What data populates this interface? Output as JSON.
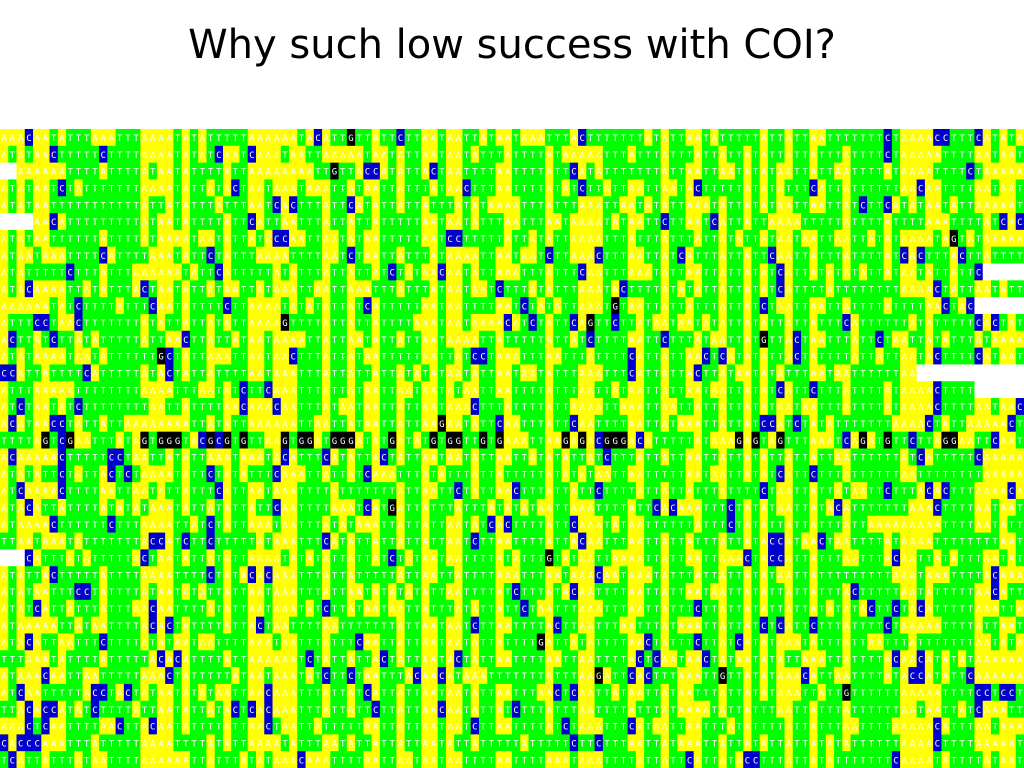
{
  "slide": {
    "title": "Why such low success with COI?"
  },
  "alignment": {
    "bases": [
      "A",
      "T",
      "C",
      "G"
    ],
    "colors": {
      "A": "#ffff00",
      "T": "#00ff00",
      "C": "#0000cc",
      "G": "#000000",
      "gap": "#ffffff"
    },
    "text_colors": {
      "on_light": "#ffffff",
      "on_dark": "#ffffff"
    }
  }
}
